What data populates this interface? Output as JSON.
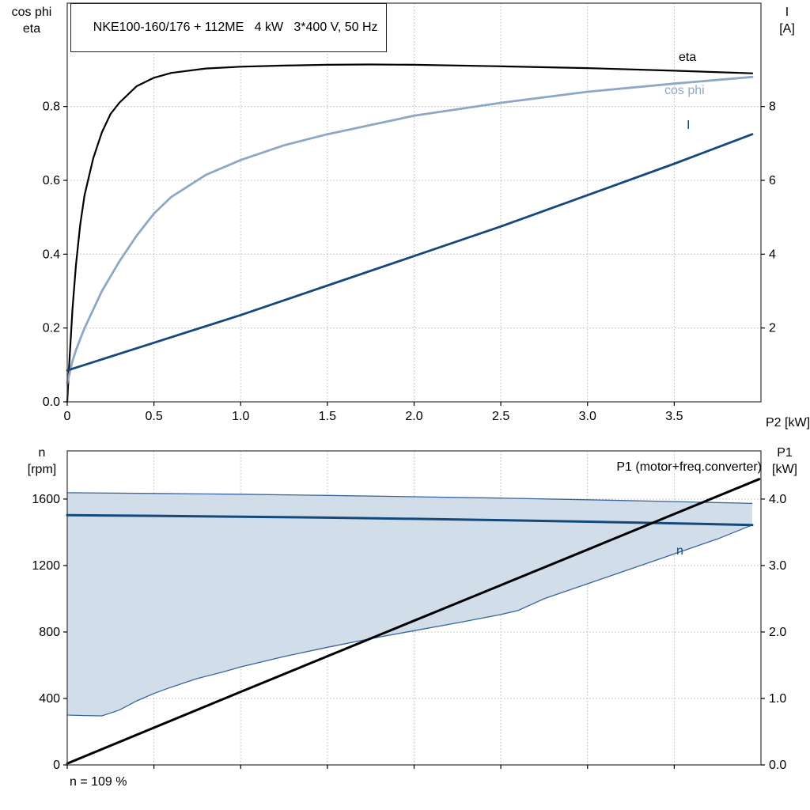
{
  "header": {
    "title": "NKE100-160/176 + 112ME   4 kW   3*400 V, 50 Hz"
  },
  "annotation": {
    "text": "n = 109 %"
  },
  "colors": {
    "eta": "#000000",
    "cos_phi": "#8ea7c6",
    "current": "#15497b",
    "speed": "#15497b",
    "p1": "#000000",
    "band_fill": "#cdd9e8",
    "band_edge": "#38649c"
  },
  "chart_data": [
    {
      "type": "line",
      "name": "motor-efficiency-chart",
      "xlabel": "P2 [kW]",
      "x_range": [
        0,
        4.0
      ],
      "x_ticks": {
        "values": [
          0,
          0.5,
          1.0,
          1.5,
          2.0,
          2.5,
          3.0,
          3.5
        ],
        "labels": [
          "0",
          "0.5",
          "1.0",
          "1.5",
          "2.0",
          "2.5",
          "3.0",
          "3.5"
        ]
      },
      "left_axis": {
        "label": "cos phi\neta",
        "range": [
          0,
          1.08
        ],
        "ticks": {
          "values": [
            0,
            0.2,
            0.4,
            0.6,
            0.8
          ],
          "labels": [
            "0.0",
            "0.2",
            "0.4",
            "0.6",
            "0.8"
          ]
        }
      },
      "right_axis": {
        "label": "I\n[A]",
        "range": [
          0,
          10.8
        ],
        "ticks": {
          "values": [
            2,
            4,
            6,
            8
          ],
          "labels": [
            "2",
            "4",
            "6",
            "8"
          ]
        }
      },
      "grid": true,
      "series": [
        {
          "name": "eta",
          "axis": "left",
          "color": "#000000",
          "width": 2.2,
          "x": [
            0,
            0.01,
            0.02,
            0.03,
            0.05,
            0.075,
            0.1,
            0.15,
            0.2,
            0.25,
            0.3,
            0.4,
            0.5,
            0.6,
            0.8,
            1.0,
            1.25,
            1.5,
            1.75,
            2.0,
            2.5,
            3.0,
            3.5,
            3.95
          ],
          "y": [
            0,
            0.09,
            0.17,
            0.25,
            0.37,
            0.48,
            0.56,
            0.66,
            0.73,
            0.78,
            0.81,
            0.855,
            0.878,
            0.891,
            0.903,
            0.908,
            0.911,
            0.913,
            0.914,
            0.913,
            0.909,
            0.904,
            0.897,
            0.89
          ]
        },
        {
          "name": "cos phi",
          "axis": "left",
          "color": "#8ea7c6",
          "width": 2.8,
          "x": [
            0,
            0.01,
            0.02,
            0.03,
            0.05,
            0.075,
            0.1,
            0.15,
            0.2,
            0.25,
            0.3,
            0.4,
            0.5,
            0.6,
            0.8,
            1.0,
            1.25,
            1.5,
            1.75,
            2.0,
            2.5,
            3.0,
            3.5,
            3.95
          ],
          "y": [
            0.05,
            0.07,
            0.09,
            0.11,
            0.14,
            0.17,
            0.2,
            0.25,
            0.3,
            0.34,
            0.38,
            0.45,
            0.51,
            0.555,
            0.615,
            0.655,
            0.695,
            0.725,
            0.75,
            0.775,
            0.81,
            0.84,
            0.862,
            0.88
          ]
        },
        {
          "name": "I",
          "axis": "right",
          "color": "#15497b",
          "width": 2.8,
          "x": [
            0,
            0.5,
            1.0,
            1.5,
            2.0,
            2.5,
            3.0,
            3.5,
            3.95
          ],
          "y": [
            0.85,
            1.6,
            2.35,
            3.15,
            3.95,
            4.75,
            5.6,
            6.45,
            7.25
          ]
        }
      ]
    },
    {
      "type": "line",
      "name": "speed-power-chart",
      "xlabel": "",
      "x_range": [
        0,
        4.0
      ],
      "x_ticks": {
        "values": [
          0,
          0.5,
          1.0,
          1.5,
          2.0,
          2.5,
          3.0,
          3.5
        ],
        "labels": []
      },
      "left_axis": {
        "label": "n\n[rpm]",
        "range": [
          0,
          1890
        ],
        "ticks": {
          "values": [
            0,
            400,
            800,
            1200,
            1600
          ],
          "labels": [
            "0",
            "400",
            "800",
            "1200",
            "1600"
          ]
        }
      },
      "right_axis": {
        "label": "P1\n[kW]",
        "range": [
          0,
          4.725
        ],
        "ticks": {
          "values": [
            0,
            1,
            2,
            3,
            4
          ],
          "labels": [
            "0.0",
            "1.0",
            "2.0",
            "3.0",
            "4.0"
          ]
        }
      },
      "grid": true,
      "band": {
        "name": "speed-control-range",
        "fill": "#cdd9e8",
        "edge_color": "#38649c",
        "upper": {
          "x": [
            0,
            0.5,
            1.0,
            1.5,
            2.0,
            2.5,
            3.0,
            3.5,
            3.95
          ],
          "y": [
            1638,
            1634,
            1629,
            1622,
            1614,
            1606,
            1596,
            1585,
            1574
          ]
        },
        "lower": {
          "x": [
            0,
            0.1,
            0.2,
            0.3,
            0.4,
            0.5,
            0.6,
            0.75,
            0.9,
            1.0,
            1.25,
            1.5,
            1.75,
            2.0,
            2.25,
            2.5,
            2.6,
            2.75,
            3.0,
            3.25,
            3.5,
            3.75,
            3.95
          ],
          "y": [
            300,
            297,
            295,
            330,
            385,
            430,
            468,
            520,
            560,
            590,
            652,
            708,
            760,
            808,
            855,
            905,
            930,
            1000,
            1090,
            1180,
            1270,
            1360,
            1444
          ]
        }
      },
      "series": [
        {
          "name": "n",
          "axis": "left",
          "color": "#15497b",
          "width": 3,
          "x": [
            0,
            0.5,
            1.0,
            1.5,
            2.0,
            2.5,
            3.0,
            3.5,
            3.95
          ],
          "y": [
            1503,
            1499,
            1494,
            1488,
            1481,
            1473,
            1464,
            1454,
            1444
          ]
        },
        {
          "name": "P1 (motor+freq.converter)",
          "axis": "right",
          "color": "#000000",
          "width": 3,
          "x": [
            0,
            1.0,
            2.0,
            3.0,
            3.99
          ],
          "y": [
            0.02,
            1.1,
            2.17,
            3.24,
            4.3
          ]
        }
      ]
    }
  ]
}
